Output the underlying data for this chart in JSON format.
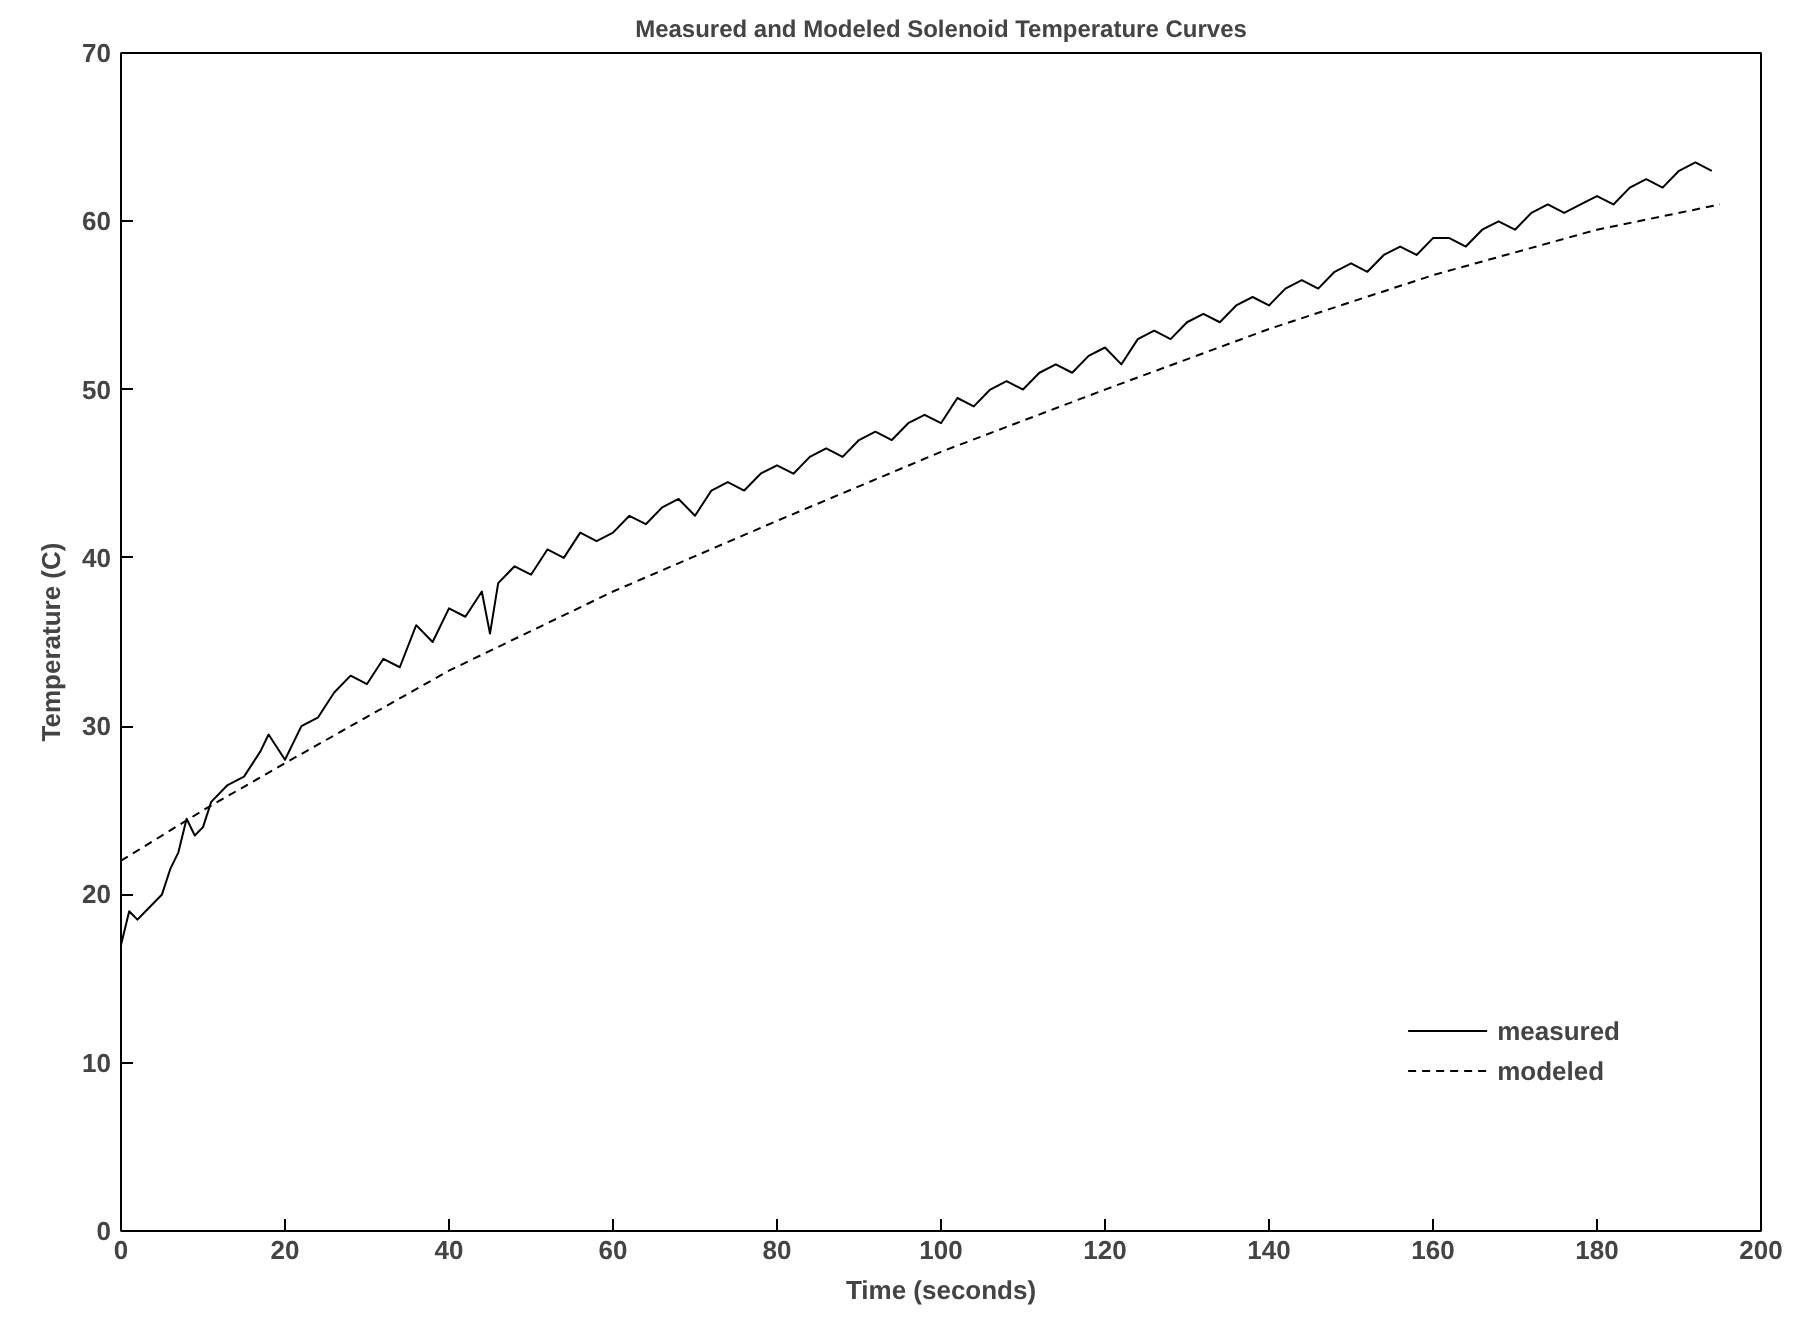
{
  "chart_data": {
    "type": "line",
    "title": "Measured and Modeled Solenoid Temperature Curves",
    "xlabel": "Time (seconds)",
    "ylabel": "Temperature (C)",
    "xlim": [
      0,
      200
    ],
    "ylim": [
      0,
      70
    ],
    "xticks": [
      0,
      20,
      40,
      60,
      80,
      100,
      120,
      140,
      160,
      180,
      200
    ],
    "yticks": [
      0,
      10,
      20,
      30,
      40,
      50,
      60,
      70
    ],
    "grid": false,
    "legend": "bottom right",
    "series": [
      {
        "name": "measured",
        "color": "#000000",
        "line_style": "solid",
        "x": [
          0,
          1,
          2,
          3,
          5,
          6,
          7,
          8,
          9,
          10,
          11,
          13,
          15,
          17,
          18,
          20,
          22,
          24,
          26,
          28,
          30,
          32,
          34,
          36,
          38,
          40,
          42,
          44,
          45,
          46,
          48,
          50,
          52,
          54,
          56,
          58,
          60,
          62,
          64,
          66,
          68,
          70,
          72,
          74,
          76,
          78,
          80,
          82,
          84,
          86,
          88,
          90,
          92,
          94,
          96,
          98,
          100,
          102,
          104,
          106,
          108,
          110,
          112,
          114,
          116,
          118,
          120,
          122,
          124,
          126,
          128,
          130,
          132,
          134,
          136,
          138,
          140,
          142,
          144,
          146,
          148,
          150,
          152,
          154,
          156,
          158,
          160,
          162,
          164,
          166,
          168,
          170,
          172,
          174,
          176,
          178,
          180,
          182,
          184,
          186,
          188,
          190,
          192,
          194
        ],
        "values": [
          17,
          19,
          18.5,
          19,
          20,
          21.5,
          22.5,
          24.5,
          23.5,
          24,
          25.5,
          26.5,
          27,
          28.5,
          29.5,
          28,
          30,
          30.5,
          32,
          33,
          32.5,
          34,
          33.5,
          36,
          35,
          37,
          36.5,
          38,
          35.5,
          38.5,
          39.5,
          39,
          40.5,
          40,
          41.5,
          41,
          41.5,
          42.5,
          42,
          43,
          43.5,
          42.5,
          44,
          44.5,
          44,
          45,
          45.5,
          45,
          46,
          46.5,
          46,
          47,
          47.5,
          47,
          48,
          48.5,
          48,
          49.5,
          49,
          50,
          50.5,
          50,
          51,
          51.5,
          51,
          52,
          52.5,
          51.5,
          53,
          53.5,
          53,
          54,
          54.5,
          54,
          55,
          55.5,
          55,
          56,
          56.5,
          56,
          57,
          57.5,
          57,
          58,
          58.5,
          58,
          59,
          59,
          58.5,
          59.5,
          60,
          59.5,
          60.5,
          61,
          60.5,
          61,
          61.5,
          61,
          62,
          62.5,
          62,
          63,
          63.5,
          63
        ]
      },
      {
        "name": "modeled",
        "color": "#000000",
        "line_style": "dashed",
        "x": [
          0,
          10,
          20,
          40,
          60,
          80,
          100,
          120,
          140,
          160,
          180,
          195
        ],
        "values": [
          22,
          25,
          27.8,
          33.3,
          38,
          42.2,
          46.3,
          50,
          53.6,
          56.8,
          59.5,
          61
        ]
      }
    ]
  }
}
